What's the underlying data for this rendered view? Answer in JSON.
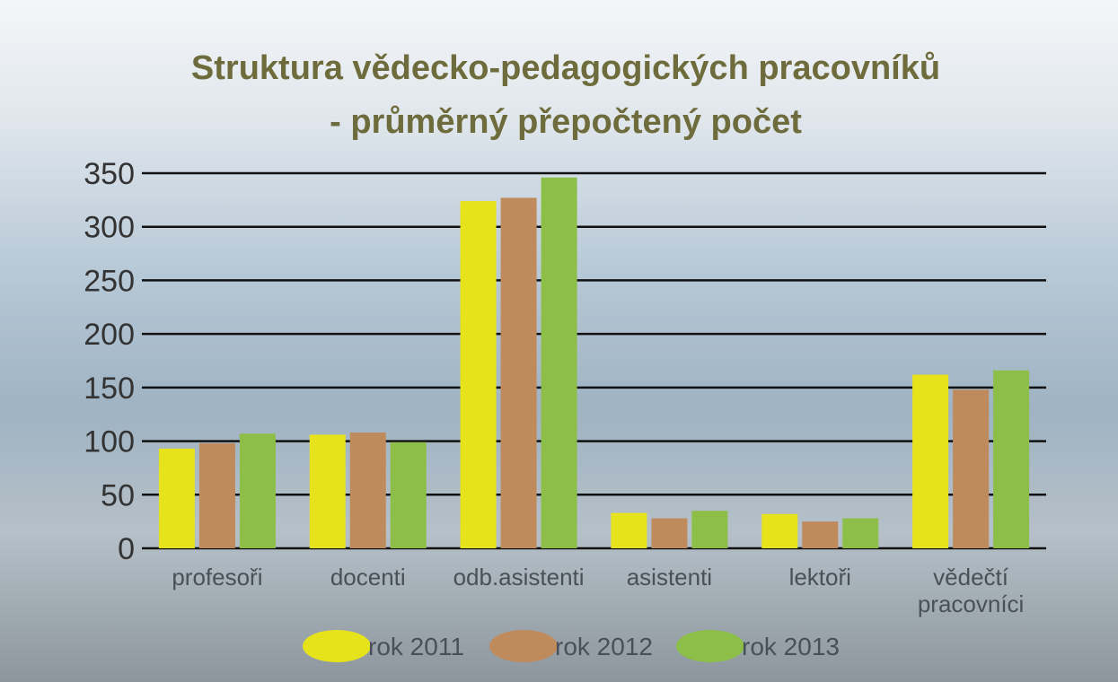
{
  "chart_data": {
    "type": "bar",
    "title": "Struktura vědecko-pedagogických pracovníků",
    "subtitle": "- průměrný přepočtený počet",
    "categories": [
      "profesoři",
      "docenti",
      "odb.asistenti",
      "asistenti",
      "lektoři",
      "vědečtí pracovníci"
    ],
    "series": [
      {
        "name": "rok 2011",
        "color": "#e6e31c",
        "values": [
          93,
          106,
          324,
          33,
          32,
          162
        ]
      },
      {
        "name": "rok 2012",
        "color": "#c08b5c",
        "values": [
          98,
          108,
          327,
          28,
          25,
          148
        ]
      },
      {
        "name": "rok 2013",
        "color": "#8dbf48",
        "values": [
          107,
          99,
          346,
          35,
          28,
          166
        ]
      }
    ],
    "ylim": [
      0,
      350
    ],
    "yticks": [
      0,
      50,
      100,
      150,
      200,
      250,
      300,
      350
    ],
    "grid": true
  }
}
